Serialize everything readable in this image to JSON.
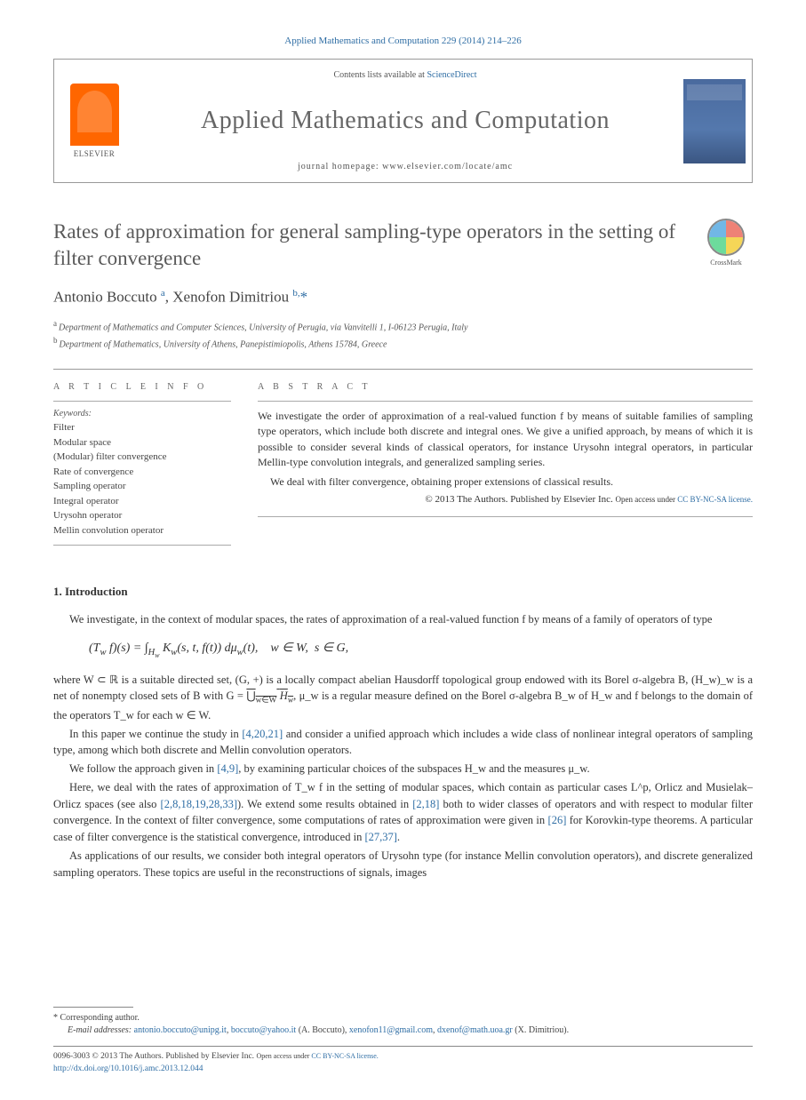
{
  "citation": "Applied Mathematics and Computation 229 (2014) 214–226",
  "header": {
    "elsevier": "ELSEVIER",
    "contents_prefix": "Contents lists available at ",
    "contents_link": "ScienceDirect",
    "journal": "Applied Mathematics and Computation",
    "homepage_label": "journal homepage: ",
    "homepage_url": "www.elsevier.com/locate/amc",
    "cover_color": "#4a6a9e"
  },
  "article": {
    "title": "Rates of approximation for general sampling-type operators in the setting of filter convergence",
    "crossmark": "CrossMark",
    "authors_html": "Antonio Boccuto <sup>a</sup>, Xenofon Dimitriou <sup>b,</sup><span class='corr'>*</span>",
    "affiliations": [
      {
        "sup": "a",
        "text": "Department of Mathematics and Computer Sciences, University of Perugia, via Vanvitelli 1, I-06123 Perugia, Italy"
      },
      {
        "sup": "b",
        "text": "Department of Mathematics, University of Athens, Panepistimiopolis, Athens 15784, Greece"
      }
    ]
  },
  "info": {
    "label": "A R T I C L E   I N F O",
    "keywords_hd": "Keywords:",
    "keywords": [
      "Filter",
      "Modular space",
      "(Modular) filter convergence",
      "Rate of convergence",
      "Sampling operator",
      "Integral operator",
      "Urysohn operator",
      "Mellin convolution operator"
    ]
  },
  "abstract": {
    "label": "A B S T R A C T",
    "paras": [
      "We investigate the order of approximation of a real-valued function f by means of suitable families of sampling type operators, which include both discrete and integral ones. We give a unified approach, by means of which it is possible to consider several kinds of classical operators, for instance Urysohn integral operators, in particular Mellin-type convolution integrals, and generalized sampling series.",
      "We deal with filter convergence, obtaining proper extensions of classical results."
    ],
    "copyright": "© 2013 The Authors. Published by Elsevier Inc.",
    "open_access": "Open access under ",
    "license": "CC BY-NC-SA license."
  },
  "section1": {
    "heading": "1. Introduction",
    "p1": "We investigate, in the context of modular spaces, the rates of approximation of a real-valued function f by means of a family of operators of type",
    "formula": "(T_w f)(s) = ∫_{H_w} K_w(s, t, f(t)) dμ_w(t),   w ∈ W,  s ∈ G,",
    "p2a": "where W ⊂ ℝ is a suitable directed set, (G, +) is a locally compact abelian Hausdorff topological group endowed with its Borel σ-algebra B, (H_w)_w is a net of nonempty closed sets of B with G = ",
    "p2b_union": "⋃_{w∈W} H_w",
    "p2c": ",  μ_w is a regular measure defined on the Borel σ-algebra B_w of H_w and f belongs to the domain of the operators T_w for each w ∈ W.",
    "p3a": "In this paper we continue the study in ",
    "p3_ref1": "[4,20,21]",
    "p3b": " and consider a unified approach which includes a wide class of nonlinear integral operators of sampling type, among which both discrete and Mellin convolution operators.",
    "p4a": "We follow the approach given in ",
    "p4_ref": "[4,9]",
    "p4b": ", by examining particular choices of the subspaces H_w and the measures μ_w.",
    "p5a": "Here, we deal with the rates of approximation of T_w f in the setting of modular spaces, which contain as particular cases L^p, Orlicz and Musielak–Orlicz spaces (see also ",
    "p5_ref1": "[2,8,18,19,28,33]",
    "p5b": "). We extend some results obtained in ",
    "p5_ref2": "[2,18]",
    "p5c": " both to wider classes of operators and with respect to modular filter convergence. In the context of filter convergence, some computations of rates of approximation were given in ",
    "p5_ref3": "[26]",
    "p5d": " for Korovkin-type theorems. A particular case of filter convergence is the statistical convergence, introduced in ",
    "p5_ref4": "[27,37]",
    "p5e": ".",
    "p6": "As applications of our results, we consider both integral operators of Urysohn type (for instance Mellin convolution operators), and discrete generalized sampling operators. These topics are useful in the reconstructions of signals, images"
  },
  "footer": {
    "corr_label": "* Corresponding author.",
    "emails_label": "E-mail addresses: ",
    "emails": [
      {
        "addr": "antonio.boccuto@unipg.it",
        "who": ""
      },
      {
        "addr": "boccuto@yahoo.it",
        "who": " (A. Boccuto), "
      },
      {
        "addr": "xenofon11@gmail.com",
        "who": ""
      },
      {
        "addr": "dxenof@math.uoa.gr",
        "who": " (X. Dimitriou)."
      }
    ],
    "issn": "0096-3003 © 2013 The Authors. Published by Elsevier Inc.",
    "open_access": "Open access under ",
    "license": "CC BY-NC-SA license.",
    "doi_label": "http://dx.doi.org/",
    "doi": "10.1016/j.amc.2013.12.044"
  },
  "colors": {
    "link": "#2e6da4",
    "text": "#333333",
    "muted": "#666666",
    "elsevier_orange": "#ff6600"
  }
}
